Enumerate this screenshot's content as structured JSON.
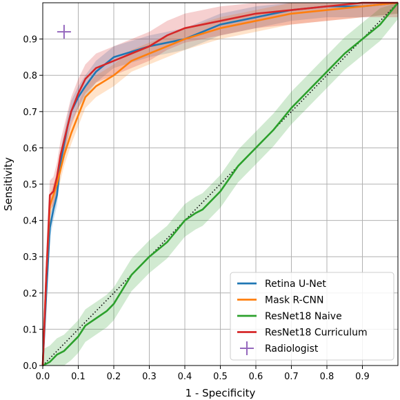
{
  "chart_data": {
    "type": "line",
    "xlabel": "1 - Specificity",
    "ylabel": "Sensitivity",
    "xlim": [
      0,
      1
    ],
    "ylim": [
      0,
      1
    ],
    "xticks": [
      "0.0",
      "0.1",
      "0.2",
      "0.3",
      "0.4",
      "0.5",
      "0.6",
      "0.7",
      "0.8",
      "0.9"
    ],
    "yticks": [
      "0.0",
      "0.1",
      "0.2",
      "0.3",
      "0.4",
      "0.5",
      "0.6",
      "0.7",
      "0.8",
      "0.9"
    ],
    "xtick_values": [
      0,
      0.1,
      0.2,
      0.3,
      0.4,
      0.5,
      0.6,
      0.7,
      0.8,
      0.9
    ],
    "ytick_values": [
      0,
      0.1,
      0.2,
      0.3,
      0.4,
      0.5,
      0.6,
      0.7,
      0.8,
      0.9
    ],
    "grid": true,
    "legend_position": "bottom-right",
    "series": [
      {
        "name": "Retina U-Net",
        "color": "#1f77b4",
        "band": 0.03,
        "points": [
          [
            0,
            0
          ],
          [
            0.01,
            0.2
          ],
          [
            0.02,
            0.38
          ],
          [
            0.03,
            0.43
          ],
          [
            0.04,
            0.47
          ],
          [
            0.05,
            0.56
          ],
          [
            0.06,
            0.61
          ],
          [
            0.07,
            0.66
          ],
          [
            0.08,
            0.7
          ],
          [
            0.1,
            0.74
          ],
          [
            0.12,
            0.77
          ],
          [
            0.15,
            0.81
          ],
          [
            0.2,
            0.85
          ],
          [
            0.25,
            0.865
          ],
          [
            0.3,
            0.88
          ],
          [
            0.4,
            0.9
          ],
          [
            0.5,
            0.94
          ],
          [
            0.6,
            0.96
          ],
          [
            0.7,
            0.98
          ],
          [
            0.8,
            0.99
          ],
          [
            0.9,
            0.99
          ],
          [
            1,
            1
          ]
        ]
      },
      {
        "name": "Mask R-CNN",
        "color": "#ff7f0e",
        "band": 0.03,
        "points": [
          [
            0,
            0
          ],
          [
            0.01,
            0.25
          ],
          [
            0.02,
            0.44
          ],
          [
            0.03,
            0.47
          ],
          [
            0.04,
            0.5
          ],
          [
            0.06,
            0.58
          ],
          [
            0.08,
            0.64
          ],
          [
            0.1,
            0.69
          ],
          [
            0.12,
            0.74
          ],
          [
            0.15,
            0.77
          ],
          [
            0.2,
            0.8
          ],
          [
            0.25,
            0.84
          ],
          [
            0.3,
            0.86
          ],
          [
            0.4,
            0.9
          ],
          [
            0.5,
            0.93
          ],
          [
            0.6,
            0.95
          ],
          [
            0.7,
            0.97
          ],
          [
            0.8,
            0.98
          ],
          [
            0.9,
            0.99
          ],
          [
            1,
            1
          ]
        ]
      },
      {
        "name": "ResNet18 Naive",
        "color": "#2ca02c",
        "band": 0.045,
        "points": [
          [
            0,
            0
          ],
          [
            0.02,
            0.01
          ],
          [
            0.04,
            0.03
          ],
          [
            0.06,
            0.04
          ],
          [
            0.08,
            0.06
          ],
          [
            0.1,
            0.08
          ],
          [
            0.12,
            0.11
          ],
          [
            0.15,
            0.13
          ],
          [
            0.18,
            0.15
          ],
          [
            0.2,
            0.17
          ],
          [
            0.25,
            0.25
          ],
          [
            0.3,
            0.3
          ],
          [
            0.35,
            0.34
          ],
          [
            0.4,
            0.4
          ],
          [
            0.43,
            0.42
          ],
          [
            0.45,
            0.43
          ],
          [
            0.5,
            0.48
          ],
          [
            0.55,
            0.55
          ],
          [
            0.6,
            0.6
          ],
          [
            0.65,
            0.65
          ],
          [
            0.7,
            0.71
          ],
          [
            0.75,
            0.76
          ],
          [
            0.8,
            0.81
          ],
          [
            0.85,
            0.86
          ],
          [
            0.9,
            0.9
          ],
          [
            0.95,
            0.94
          ],
          [
            1,
            1
          ]
        ]
      },
      {
        "name": "ResNet18 Curriculum",
        "color": "#d62728",
        "band": 0.04,
        "points": [
          [
            0,
            0
          ],
          [
            0.01,
            0.25
          ],
          [
            0.02,
            0.47
          ],
          [
            0.03,
            0.48
          ],
          [
            0.04,
            0.52
          ],
          [
            0.05,
            0.58
          ],
          [
            0.06,
            0.62
          ],
          [
            0.07,
            0.66
          ],
          [
            0.08,
            0.7
          ],
          [
            0.1,
            0.75
          ],
          [
            0.12,
            0.79
          ],
          [
            0.15,
            0.82
          ],
          [
            0.2,
            0.84
          ],
          [
            0.25,
            0.86
          ],
          [
            0.3,
            0.88
          ],
          [
            0.35,
            0.91
          ],
          [
            0.4,
            0.93
          ],
          [
            0.5,
            0.95
          ],
          [
            0.6,
            0.97
          ],
          [
            0.7,
            0.98
          ],
          [
            0.8,
            0.99
          ],
          [
            0.9,
            1
          ],
          [
            1,
            1
          ]
        ]
      }
    ],
    "reference_line": {
      "style": "dotted",
      "color": "#000000",
      "points": [
        [
          0,
          0
        ],
        [
          1,
          1
        ]
      ]
    },
    "markers": [
      {
        "name": "Radiologist",
        "shape": "plus",
        "color": "#9467bd",
        "x": 0.06,
        "y": 0.92
      }
    ]
  }
}
